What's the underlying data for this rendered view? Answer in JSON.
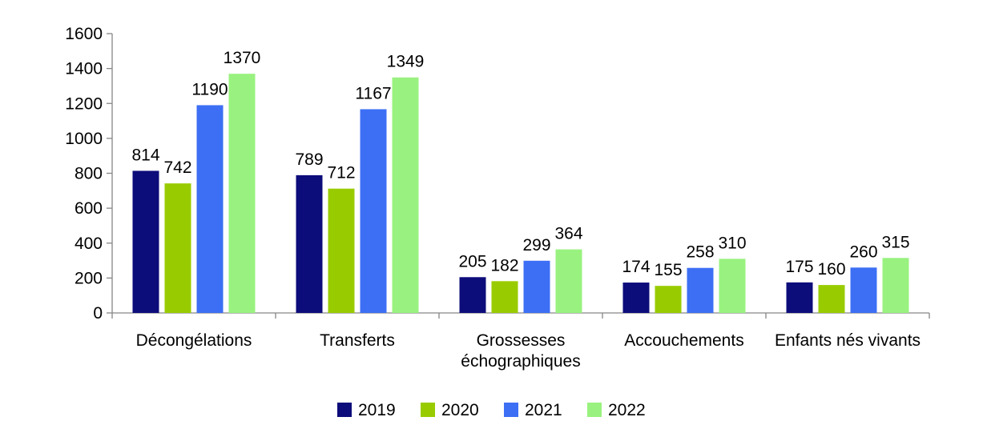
{
  "chart_data": {
    "type": "bar",
    "categories": [
      [
        "Décongélations"
      ],
      [
        "Transferts"
      ],
      [
        "Grossesses",
        "échographiques"
      ],
      [
        "Accouchements"
      ],
      [
        "Enfants nés vivants"
      ]
    ],
    "series": [
      {
        "name": "2019",
        "color": "#0c0c7a",
        "values": [
          814,
          789,
          205,
          174,
          175
        ]
      },
      {
        "name": "2020",
        "color": "#99cc00",
        "values": [
          742,
          712,
          182,
          155,
          160
        ]
      },
      {
        "name": "2021",
        "color": "#3d6ff5",
        "values": [
          1190,
          1167,
          299,
          258,
          260
        ]
      },
      {
        "name": "2022",
        "color": "#99f27f",
        "values": [
          1370,
          1349,
          364,
          310,
          315
        ]
      }
    ],
    "y_ticks": [
      "0",
      "200",
      "400",
      "600",
      "800",
      "1000",
      "1200",
      "1400",
      "1600"
    ],
    "ylim": [
      0,
      1600
    ],
    "grid": false,
    "legend_position": "bottom",
    "title": "",
    "xlabel": "",
    "ylabel": ""
  }
}
